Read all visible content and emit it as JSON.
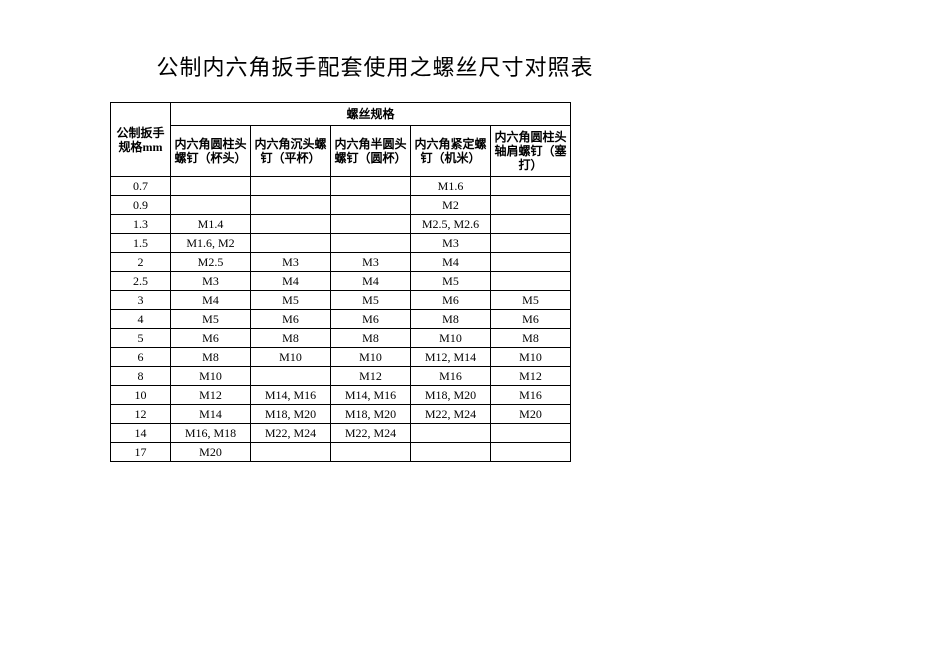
{
  "title": "公制内六角扳手配套使用之螺丝尺寸对照表",
  "table": {
    "left_header": "公制扳手规格mm",
    "group_header": "螺丝规格",
    "columns": [
      "内六角圆柱头螺钉（杯头）",
      "内六角沉头螺钉（平杯）",
      "内六角半圆头螺钉（圆杯）",
      "内六角紧定螺钉（机米）",
      "内六角圆柱头轴肩螺钉（塞打）"
    ],
    "rows": [
      {
        "size": "0.7",
        "cells": [
          "",
          "",
          "",
          "M1.6",
          ""
        ]
      },
      {
        "size": "0.9",
        "cells": [
          "",
          "",
          "",
          "M2",
          ""
        ]
      },
      {
        "size": "1.3",
        "cells": [
          "M1.4",
          "",
          "",
          "M2.5, M2.6",
          ""
        ]
      },
      {
        "size": "1.5",
        "cells": [
          "M1.6, M2",
          "",
          "",
          "M3",
          ""
        ]
      },
      {
        "size": "2",
        "cells": [
          "M2.5",
          "M3",
          "M3",
          "M4",
          ""
        ]
      },
      {
        "size": "2.5",
        "cells": [
          "M3",
          "M4",
          "M4",
          "M5",
          ""
        ]
      },
      {
        "size": "3",
        "cells": [
          "M4",
          "M5",
          "M5",
          "M6",
          "M5"
        ]
      },
      {
        "size": "4",
        "cells": [
          "M5",
          "M6",
          "M6",
          "M8",
          "M6"
        ]
      },
      {
        "size": "5",
        "cells": [
          "M6",
          "M8",
          "M8",
          "M10",
          "M8"
        ]
      },
      {
        "size": "6",
        "cells": [
          "M8",
          "M10",
          "M10",
          "M12, M14",
          "M10"
        ]
      },
      {
        "size": "8",
        "cells": [
          "M10",
          "",
          "M12",
          "M16",
          "M12"
        ]
      },
      {
        "size": "10",
        "cells": [
          "M12",
          "M14, M16",
          "M14, M16",
          "M18, M20",
          "M16"
        ]
      },
      {
        "size": "12",
        "cells": [
          "M14",
          "M18, M20",
          "M18, M20",
          "M22, M24",
          "M20"
        ]
      },
      {
        "size": "14",
        "cells": [
          "M16, M18",
          "M22, M24",
          "M22, M24",
          "",
          ""
        ]
      },
      {
        "size": "17",
        "cells": [
          "M20",
          "",
          "",
          "",
          ""
        ]
      }
    ]
  },
  "style": {
    "background_color": "#ffffff",
    "border_color": "#000000",
    "text_color": "#000000",
    "title_fontsize": 22,
    "cell_fontsize": 12,
    "font_family": "SimSun"
  }
}
